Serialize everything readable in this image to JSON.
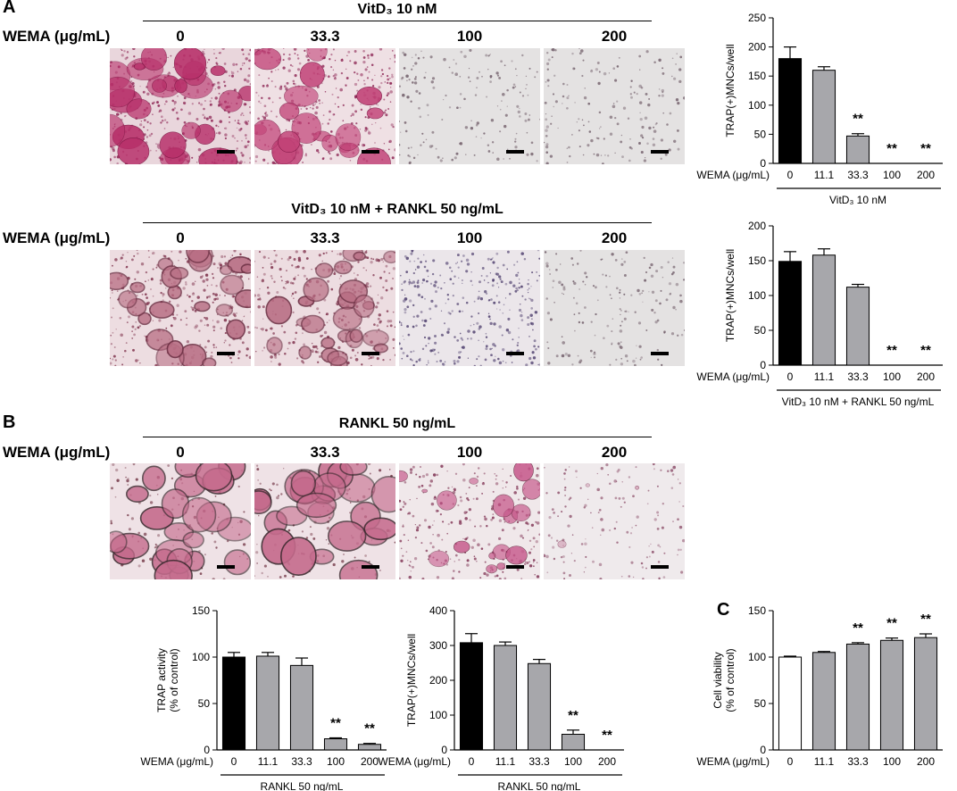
{
  "panels": {
    "A": "A",
    "B": "B",
    "C": "C"
  },
  "common": {
    "wema_label": "WEMA (μg/mL)"
  },
  "image_rows": [
    {
      "title": "VitD₃ 10 nM",
      "concentrations": [
        "0",
        "33.3",
        "100",
        "200"
      ],
      "images": [
        {
          "style": "dense-magenta"
        },
        {
          "style": "dense-magenta-light"
        },
        {
          "style": "sparse-gray"
        },
        {
          "style": "sparse-gray"
        }
      ]
    },
    {
      "title": "VitD₃ 10 nM + RANKL 50 ng/mL",
      "concentrations": [
        "0",
        "33.3",
        "100",
        "200"
      ],
      "images": [
        {
          "style": "dense-rose"
        },
        {
          "style": "dense-rose"
        },
        {
          "style": "sparse-purple"
        },
        {
          "style": "sparse-gray"
        }
      ]
    },
    {
      "title": "RANKL 50 ng/mL",
      "concentrations": [
        "0",
        "33.3",
        "100",
        "200"
      ],
      "images": [
        {
          "style": "large-pink"
        },
        {
          "style": "large-pink"
        },
        {
          "style": "medium-pink"
        },
        {
          "style": "sparse-pink"
        }
      ]
    }
  ],
  "colors": {
    "black_bar": "#000000",
    "gray_bar": "#a7a7ab",
    "white_bar": "#ffffff"
  },
  "chart_data": [
    {
      "id": "A1",
      "type": "bar",
      "ylabel": "TRAP(+)MNCs/well",
      "xprefix": "WEMA (μg/mL)",
      "categories": [
        "0",
        "11.1",
        "33.3",
        "100",
        "200"
      ],
      "values": [
        180,
        160,
        47,
        0,
        0
      ],
      "errors": [
        20,
        6,
        4,
        0,
        0
      ],
      "fills": [
        "black",
        "gray",
        "gray",
        "gray",
        "gray"
      ],
      "significance": [
        "",
        "",
        "**",
        "**",
        "**"
      ],
      "ylim": [
        0,
        250
      ],
      "yticks": [
        0,
        50,
        100,
        150,
        200,
        250
      ],
      "group_label": "VitD₃ 10 nM"
    },
    {
      "id": "A2",
      "type": "bar",
      "ylabel": "TRAP(+)MNCs/well",
      "xprefix": "WEMA (μg/mL)",
      "categories": [
        "0",
        "11.1",
        "33.3",
        "100",
        "200"
      ],
      "values": [
        149,
        158,
        112,
        0,
        0
      ],
      "errors": [
        14,
        9,
        4,
        0,
        0
      ],
      "fills": [
        "black",
        "gray",
        "gray",
        "gray",
        "gray"
      ],
      "significance": [
        "",
        "",
        "",
        "**",
        "**"
      ],
      "ylim": [
        0,
        200
      ],
      "yticks": [
        0,
        50,
        100,
        150,
        200
      ],
      "group_label": "VitD₃ 10 nM + RANKL 50 ng/mL"
    },
    {
      "id": "B1",
      "type": "bar",
      "ylabel": [
        "TRAP activity",
        "(% of control)"
      ],
      "xprefix": "WEMA (μg/mL)",
      "categories": [
        "0",
        "11.1",
        "33.3",
        "100",
        "200"
      ],
      "values": [
        100,
        101,
        91,
        12,
        6
      ],
      "errors": [
        5,
        4,
        8,
        1,
        1
      ],
      "fills": [
        "black",
        "gray",
        "gray",
        "gray",
        "gray"
      ],
      "significance": [
        "",
        "",
        "",
        "**",
        "**"
      ],
      "ylim": [
        0,
        150
      ],
      "yticks": [
        0,
        50,
        100,
        150
      ],
      "group_label": "RANKL 50 ng/mL"
    },
    {
      "id": "B2",
      "type": "bar",
      "ylabel": "TRAP(+)MNCs/well",
      "xprefix": "WEMA (μg/mL)",
      "categories": [
        "0",
        "11.1",
        "33.3",
        "100",
        "200"
      ],
      "values": [
        308,
        300,
        248,
        45,
        0
      ],
      "errors": [
        26,
        10,
        12,
        12,
        0
      ],
      "fills": [
        "black",
        "gray",
        "gray",
        "gray",
        "gray"
      ],
      "significance": [
        "",
        "",
        "",
        "**",
        "**"
      ],
      "ylim": [
        0,
        400
      ],
      "yticks": [
        0,
        100,
        200,
        300,
        400
      ],
      "group_label": "RANKL 50 ng/mL"
    },
    {
      "id": "C1",
      "type": "bar",
      "ylabel": [
        "Cell viability",
        "(% of control)"
      ],
      "xprefix": "WEMA (μg/mL)",
      "categories": [
        "0",
        "11.1",
        "33.3",
        "100",
        "200"
      ],
      "values": [
        100,
        105,
        114,
        118,
        121
      ],
      "errors": [
        1,
        1,
        1.5,
        2.5,
        4
      ],
      "fills": [
        "white",
        "gray",
        "gray",
        "gray",
        "gray"
      ],
      "significance": [
        "",
        "",
        "**",
        "**",
        "**"
      ],
      "ylim": [
        0,
        150
      ],
      "yticks": [
        0,
        50,
        100,
        150
      ],
      "group_label": ""
    }
  ]
}
